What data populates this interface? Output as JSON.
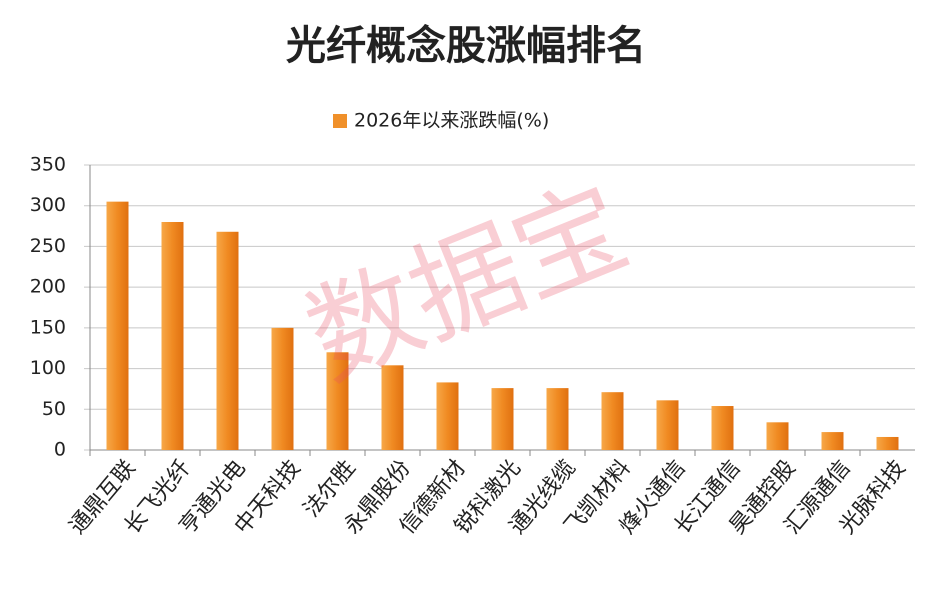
{
  "chart_data": {
    "type": "bar",
    "title": "光纤概念股涨幅排名",
    "series": [
      {
        "name": "2026年以来涨跌幅(%)",
        "color": "#f0902a",
        "values": [
          305,
          280,
          268,
          150,
          120,
          104,
          83,
          76,
          76,
          71,
          61,
          54,
          34,
          22,
          16
        ]
      }
    ],
    "categories": [
      "通鼎互联",
      "长飞光纤",
      "亨通光电",
      "中天科技",
      "法尔胜",
      "永鼎股份",
      "信德新材",
      "锐科激光",
      "通光线缆",
      "飞凯材料",
      "烽火通信",
      "长江通信",
      "昊通控股",
      "汇源通信",
      "光脉科技"
    ],
    "ylim": [
      0,
      350
    ],
    "yticks": [
      0,
      50,
      100,
      150,
      200,
      250,
      300,
      350
    ],
    "grid": true,
    "legend": "top",
    "watermark": "数据宝"
  }
}
